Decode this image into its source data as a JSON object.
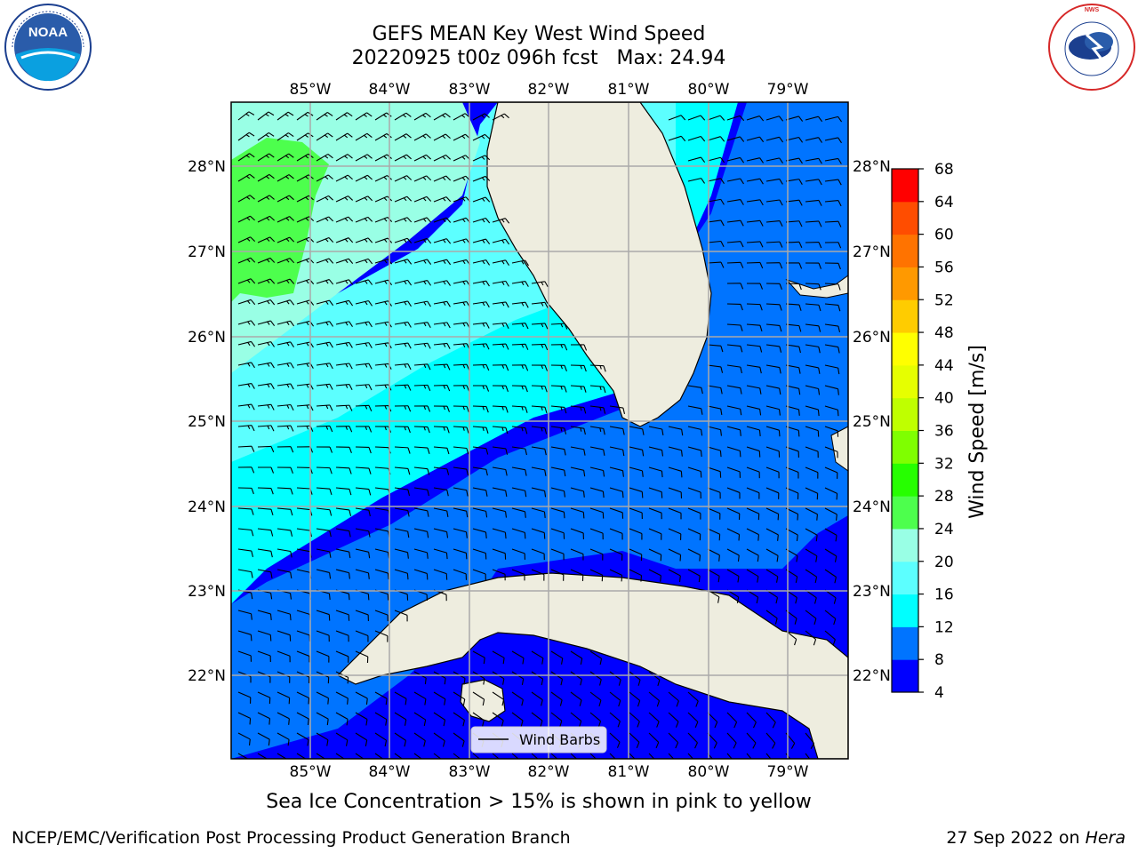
{
  "header": {
    "title_line1": "GEFS MEAN Key West Wind Speed",
    "title_line2": "20220925 t00z 096h fcst   Max: 24.94"
  },
  "logos": {
    "left": {
      "icon": "noaa-logo",
      "text": "NOAA"
    },
    "right": {
      "icon": "national-weather-service-logo",
      "text": "NATIONAL WEATHER SERVICE"
    }
  },
  "map": {
    "lon_labels": [
      "85°W",
      "84°W",
      "83°W",
      "82°W",
      "81°W",
      "80°W",
      "79°W"
    ],
    "lat_labels": [
      "28°N",
      "27°N",
      "26°N",
      "25°N",
      "24°N",
      "23°N",
      "22°N"
    ],
    "legend_label": "Wind Barbs"
  },
  "colorbar": {
    "label": "Wind Speed [m/s]",
    "ticks": [
      "68",
      "64",
      "60",
      "56",
      "52",
      "48",
      "44",
      "40",
      "36",
      "32",
      "28",
      "24",
      "20",
      "16",
      "12",
      "8",
      "4"
    ],
    "colors": [
      "#0000ff",
      "#0074ff",
      "#00ffff",
      "#5cffff",
      "#99ffe5",
      "#4dff4d",
      "#26ff00",
      "#7fff00",
      "#bfff00",
      "#e6ff00",
      "#ffff00",
      "#ffcc00",
      "#ff9900",
      "#ff7300",
      "#ff4d00",
      "#ff0000"
    ]
  },
  "notes": {
    "sea_ice": "Sea Ice Concentration > 15% is shown in pink to yellow"
  },
  "footer": {
    "left": "NCEP/EMC/Verification Post Processing Product Generation Branch",
    "right_prefix": "27 Sep 2022 on ",
    "right_host": "Hera"
  }
}
